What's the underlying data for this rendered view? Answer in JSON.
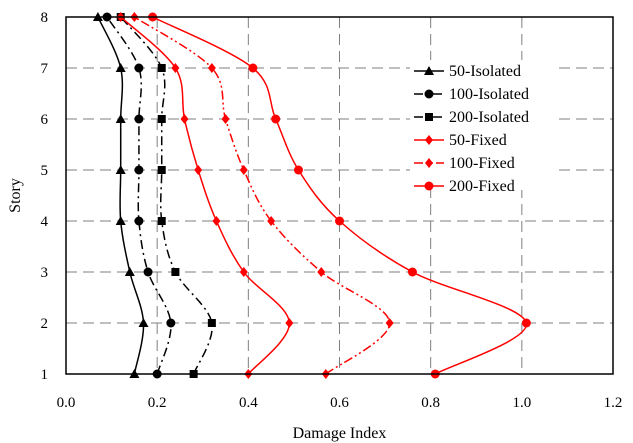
{
  "chart_data": {
    "type": "line",
    "xlabel": "Damage Index",
    "ylabel": "Story",
    "xlim": [
      0,
      1.2
    ],
    "ylim": [
      1,
      8
    ],
    "xticks": [
      "0.0",
      "0.2",
      "0.4",
      "0.6",
      "0.8",
      "1.0",
      "1.2"
    ],
    "yticks": [
      "1",
      "2",
      "3",
      "4",
      "5",
      "6",
      "7",
      "8"
    ],
    "grid": true,
    "legend_position": "right",
    "series": [
      {
        "name": "50-Isolated",
        "color": "#000000",
        "dash": "solid",
        "marker": "triangle",
        "x": [
          0.15,
          0.17,
          0.14,
          0.12,
          0.12,
          0.12,
          0.12,
          0.07
        ],
        "y": [
          1,
          2,
          3,
          4,
          5,
          6,
          7,
          8
        ]
      },
      {
        "name": "100-Isolated",
        "color": "#000000",
        "dash": "dashdot",
        "marker": "circle",
        "x": [
          0.2,
          0.23,
          0.18,
          0.16,
          0.16,
          0.16,
          0.16,
          0.09
        ],
        "y": [
          1,
          2,
          3,
          4,
          5,
          6,
          7,
          8
        ]
      },
      {
        "name": "200-Isolated",
        "color": "#000000",
        "dash": "dashdot",
        "marker": "square",
        "x": [
          0.28,
          0.32,
          0.24,
          0.21,
          0.21,
          0.21,
          0.21,
          0.12
        ],
        "y": [
          1,
          2,
          3,
          4,
          5,
          6,
          7,
          8
        ]
      },
      {
        "name": "50-Fixed",
        "color": "#ff0000",
        "dash": "solid",
        "marker": "diamond",
        "x": [
          0.4,
          0.49,
          0.39,
          0.33,
          0.29,
          0.26,
          0.24,
          0.12
        ],
        "y": [
          1,
          2,
          3,
          4,
          5,
          6,
          7,
          8
        ]
      },
      {
        "name": "100-Fixed",
        "color": "#ff0000",
        "dash": "dashdotdot",
        "marker": "diamond",
        "x": [
          0.57,
          0.71,
          0.56,
          0.45,
          0.39,
          0.35,
          0.32,
          0.15
        ],
        "y": [
          1,
          2,
          3,
          4,
          5,
          6,
          7,
          8
        ]
      },
      {
        "name": "200-Fixed",
        "color": "#ff0000",
        "dash": "solid",
        "marker": "circle",
        "x": [
          0.81,
          1.01,
          0.76,
          0.6,
          0.51,
          0.46,
          0.41,
          0.19
        ],
        "y": [
          1,
          2,
          3,
          4,
          5,
          6,
          7,
          8
        ]
      }
    ]
  }
}
